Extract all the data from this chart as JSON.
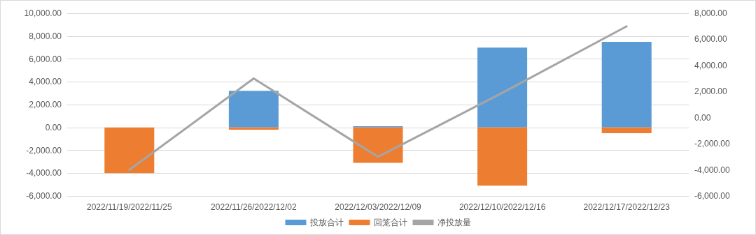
{
  "chart_data": {
    "type": "bar",
    "categories": [
      "2022/11/19/2022/11/25",
      "2022/11/26/2022/12/02",
      "2022/12/03/2022/12/09",
      "2022/12/10/2022/12/16",
      "2022/12/17/2022/12/23"
    ],
    "series": [
      {
        "name": "投放合计",
        "color": "#5b9bd5",
        "values": [
          0,
          3200,
          100,
          7000,
          7500
        ]
      },
      {
        "name": "回笼合计",
        "color": "#ed7d31",
        "values": [
          -4000,
          -200,
          -3100,
          -5100,
          -500
        ]
      },
      {
        "name": "净投放量",
        "type": "line",
        "axis": "y2",
        "color": "#a5a5a5",
        "values": [
          -4000,
          3000,
          -3000,
          1900,
          7000
        ]
      }
    ],
    "stacked": true,
    "ylim": [
      -6000,
      10000
    ],
    "yticks": [
      {
        "value": -6000,
        "label": "-6,000.00"
      },
      {
        "value": -4000,
        "label": "-4,000.00"
      },
      {
        "value": -2000,
        "label": "-2,000.00"
      },
      {
        "value": 0,
        "label": "0.00"
      },
      {
        "value": 2000,
        "label": "2,000.00"
      },
      {
        "value": 4000,
        "label": "4,000.00"
      },
      {
        "value": 6000,
        "label": "6,000.00"
      },
      {
        "value": 8000,
        "label": "8,000.00"
      },
      {
        "value": 10000,
        "label": "10,000.00"
      }
    ],
    "y2lim": [
      -6000,
      8000
    ],
    "y2ticks": [
      {
        "value": -6000,
        "label": "-6,000.00"
      },
      {
        "value": -4000,
        "label": "-4,000.00"
      },
      {
        "value": -2000,
        "label": "-2,000.00"
      },
      {
        "value": 0,
        "label": "0.00"
      },
      {
        "value": 2000,
        "label": "2,000.00"
      },
      {
        "value": 4000,
        "label": "4,000.00"
      },
      {
        "value": 6000,
        "label": "6,000.00"
      },
      {
        "value": 8000,
        "label": "8,000.00"
      }
    ],
    "grid": "y",
    "legend": "bottom",
    "marker": "none"
  }
}
